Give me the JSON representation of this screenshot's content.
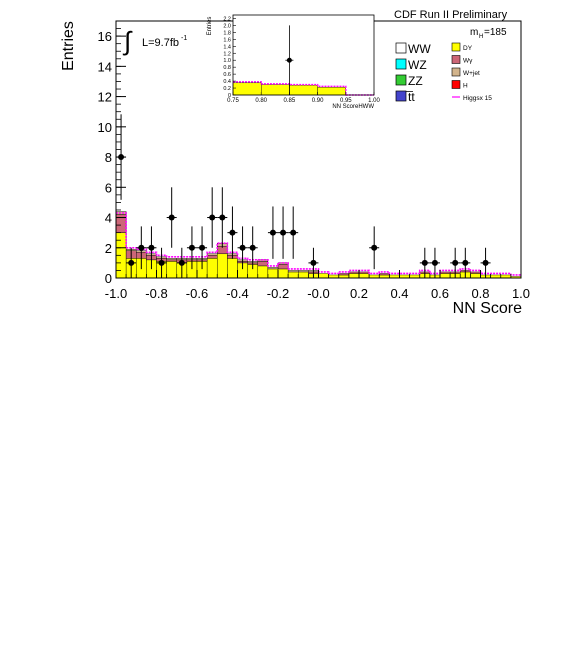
{
  "chart_data": {
    "type": "bar",
    "title": "CDF Run II Preliminary",
    "ylabel": "Entries",
    "xlabel": "NN Score",
    "lumi_label": "L=9.7fb",
    "lumi_exponent": "-1",
    "mass_label": "m",
    "mass_sub": "H",
    "mass_value": "=185",
    "xlim": [
      -1.0,
      1.0
    ],
    "ylim": [
      0,
      17
    ],
    "x_ticks": [
      "-1.0",
      "-0.8",
      "-0.6",
      "-0.4",
      "-0.2",
      "-0.0",
      "0.2",
      "0.4",
      "0.6",
      "0.8",
      "1.0"
    ],
    "y_ticks": [
      "0",
      "2",
      "4",
      "6",
      "8",
      "10",
      "12",
      "14",
      "16"
    ],
    "bin_edges": [
      -1.0,
      -0.95,
      -0.9,
      -0.85,
      -0.8,
      -0.75,
      -0.7,
      -0.65,
      -0.6,
      -0.55,
      -0.5,
      -0.45,
      -0.4,
      -0.35,
      -0.3,
      -0.25,
      -0.2,
      -0.15,
      -0.1,
      -0.05,
      0.0,
      0.05,
      0.1,
      0.15,
      0.2,
      0.25,
      0.3,
      0.35,
      0.4,
      0.45,
      0.5,
      0.55,
      0.6,
      0.65,
      0.7,
      0.75,
      0.8,
      0.85,
      0.9,
      0.95,
      1.0
    ],
    "series": [
      {
        "name": "DY",
        "color": "#ffff00",
        "values": [
          3.0,
          1.3,
          1.3,
          1.2,
          1.1,
          1.1,
          1.0,
          1.1,
          1.1,
          1.3,
          1.6,
          1.3,
          1.0,
          0.9,
          0.8,
          0.6,
          0.6,
          0.4,
          0.4,
          0.3,
          0.3,
          0.2,
          0.2,
          0.3,
          0.3,
          0.2,
          0.2,
          0.2,
          0.2,
          0.2,
          0.3,
          0.2,
          0.3,
          0.3,
          0.4,
          0.3,
          0.2,
          0.2,
          0.2,
          0.1
        ]
      },
      {
        "name": "Wγ",
        "color": "#cc6677",
        "values": [
          1.2,
          0.5,
          0.4,
          0.3,
          0.2,
          0.1,
          0.2,
          0.1,
          0.1,
          0.2,
          0.5,
          0.2,
          0.1,
          0.1,
          0.3,
          0.0,
          0.3,
          0.0,
          0.0,
          0.1,
          0.0,
          0.0,
          0.1,
          0.1,
          0.1,
          0.0,
          0.1,
          0.0,
          0.0,
          0.0,
          0.1,
          0.0,
          0.1,
          0.1,
          0.1,
          0.1,
          0.0,
          0.0,
          0.0,
          0.0
        ]
      },
      {
        "name": "W+jet",
        "color": "#d2b48c",
        "values": [
          0.2,
          0.1,
          0.1,
          0.1,
          0.1,
          0.1,
          0.1,
          0.1,
          0.1,
          0.1,
          0.2,
          0.1,
          0.1,
          0.1,
          0.1,
          0.1,
          0.1,
          0.1,
          0.1,
          0.1,
          0.0,
          0.0,
          0.0,
          0.0,
          0.0,
          0.0,
          0.0,
          0.0,
          0.0,
          0.0,
          0.0,
          0.0,
          0.0,
          0.0,
          0.0,
          0.0,
          0.0,
          0.0,
          0.0,
          0.0
        ]
      },
      {
        "name": "Higgsx 15",
        "color": "#ff00ff",
        "style": "line",
        "values": [
          4.3,
          2.0,
          1.9,
          1.7,
          1.5,
          1.4,
          1.4,
          1.4,
          1.4,
          1.7,
          2.3,
          1.7,
          1.3,
          1.2,
          1.2,
          0.8,
          1.0,
          0.6,
          0.6,
          0.6,
          0.4,
          0.3,
          0.4,
          0.5,
          0.5,
          0.3,
          0.4,
          0.3,
          0.3,
          0.3,
          0.5,
          0.3,
          0.5,
          0.5,
          0.6,
          0.5,
          0.3,
          0.3,
          0.3,
          0.2
        ]
      }
    ],
    "data_points": {
      "name": "Data",
      "x": [
        -0.975,
        -0.925,
        -0.875,
        -0.825,
        -0.775,
        -0.725,
        -0.675,
        -0.625,
        -0.575,
        -0.525,
        -0.475,
        -0.425,
        -0.375,
        -0.325,
        -0.225,
        -0.175,
        -0.125,
        -0.025,
        0.275,
        0.525,
        0.575,
        0.675,
        0.725,
        0.825
      ],
      "y": [
        8,
        1,
        2,
        2,
        1,
        4,
        1,
        2,
        2,
        4,
        4,
        3,
        2,
        2,
        3,
        3,
        3,
        1,
        2,
        1,
        1,
        1,
        1,
        1
      ]
    },
    "legend": {
      "placement": "top-right",
      "left_entries": [
        {
          "label": "WW",
          "color": "#ffffff"
        },
        {
          "label": "WZ",
          "color": "#00ffff"
        },
        {
          "label": "ZZ",
          "color": "#33cc33"
        },
        {
          "label": "t̅t",
          "color": "#4444cc"
        }
      ],
      "right_entries": [
        {
          "label": "DY",
          "color": "#ffff00"
        },
        {
          "label": "Wγ",
          "color": "#cc6677"
        },
        {
          "label": "W+jet",
          "color": "#d2b48c"
        },
        {
          "label": "H",
          "color": "#ff0000"
        },
        {
          "label": "Higgsx 15",
          "color": "#ff00ff",
          "line": true
        }
      ]
    },
    "inset": {
      "ylabel": "Entries",
      "xlabel": "NN ScoreHWW",
      "xlim": [
        0.75,
        1.0
      ],
      "ylim": [
        0,
        2.3
      ],
      "x_ticks": [
        "0.75",
        "0.80",
        "0.85",
        "0.90",
        "0.95",
        "1.00"
      ],
      "y_ticks": [
        "0",
        "0.2",
        "0.4",
        "0.6",
        "0.8",
        "1.0",
        "1.2",
        "1.4",
        "1.6",
        "1.8",
        "2.0",
        "2.2"
      ],
      "bin_edges": [
        0.75,
        0.8,
        0.85,
        0.9,
        0.95,
        1.0
      ],
      "series": [
        {
          "name": "DY",
          "color": "#ffff00",
          "values": [
            0.35,
            0.3,
            0.28,
            0.22,
            0.0
          ]
        },
        {
          "name": "Higgsx 15",
          "color": "#ff00ff",
          "style": "line",
          "values": [
            0.38,
            0.32,
            0.3,
            0.25,
            0.0
          ]
        }
      ],
      "data_points": {
        "x": [
          0.85
        ],
        "y": [
          1
        ]
      }
    }
  }
}
